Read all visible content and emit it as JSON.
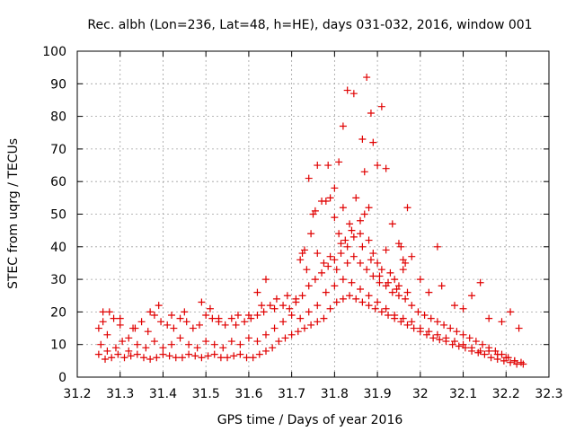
{
  "chart_data": {
    "type": "scatter",
    "title": "Rec. albh (Lon=236, Lat=48, h=HE), days 031-032, 2016, window 001",
    "xlabel": "GPS time / Days of year 2016",
    "ylabel": "STEC from uqrg / TECUs",
    "xlim": [
      31.2,
      32.3
    ],
    "ylim": [
      0,
      100
    ],
    "xticks": [
      31.2,
      31.3,
      31.4,
      31.5,
      31.6,
      31.7,
      31.8,
      31.9,
      32,
      32.1,
      32.2,
      32.3
    ],
    "xtick_labels": [
      "31.2",
      "31.3",
      "31.4",
      "31.5",
      "31.6",
      "31.7",
      "31.8",
      "31.9",
      "32",
      "32.1",
      "32.2",
      "32.3"
    ],
    "yticks": [
      0,
      10,
      20,
      30,
      40,
      50,
      60,
      70,
      80,
      90,
      100
    ],
    "ytick_labels": [
      "0",
      "10",
      "20",
      "30",
      "40",
      "50",
      "60",
      "70",
      "80",
      "90",
      "100"
    ],
    "grid": true,
    "marker": "+",
    "color": "#e00000",
    "series": [
      {
        "name": "",
        "points": [
          [
            31.25,
            7
          ],
          [
            31.265,
            5.5
          ],
          [
            31.28,
            6
          ],
          [
            31.295,
            7
          ],
          [
            31.31,
            6
          ],
          [
            31.325,
            6.5
          ],
          [
            31.34,
            7
          ],
          [
            31.355,
            6
          ],
          [
            31.37,
            5.5
          ],
          [
            31.385,
            6
          ],
          [
            31.4,
            7
          ],
          [
            31.415,
            6.5
          ],
          [
            31.43,
            6
          ],
          [
            31.445,
            6
          ],
          [
            31.46,
            7
          ],
          [
            31.475,
            6.5
          ],
          [
            31.49,
            6
          ],
          [
            31.505,
            6.5
          ],
          [
            31.52,
            7
          ],
          [
            31.535,
            6
          ],
          [
            31.55,
            6
          ],
          [
            31.565,
            6.5
          ],
          [
            31.58,
            7
          ],
          [
            31.595,
            6
          ],
          [
            31.61,
            6
          ],
          [
            31.625,
            7
          ],
          [
            31.64,
            8
          ],
          [
            31.655,
            9
          ],
          [
            31.67,
            11
          ],
          [
            31.685,
            12
          ],
          [
            31.7,
            13
          ],
          [
            31.715,
            14
          ],
          [
            31.73,
            15
          ],
          [
            31.745,
            16
          ],
          [
            31.76,
            17
          ],
          [
            31.775,
            18
          ],
          [
            31.79,
            21
          ],
          [
            31.805,
            23
          ],
          [
            31.82,
            24
          ],
          [
            31.835,
            25
          ],
          [
            31.85,
            24
          ],
          [
            31.865,
            23
          ],
          [
            31.88,
            22
          ],
          [
            31.895,
            21
          ],
          [
            31.91,
            20
          ],
          [
            31.925,
            19
          ],
          [
            31.94,
            18
          ],
          [
            31.955,
            17
          ],
          [
            31.97,
            16
          ],
          [
            31.985,
            15
          ],
          [
            32.0,
            14
          ],
          [
            32.015,
            13
          ],
          [
            32.03,
            12
          ],
          [
            32.045,
            11.5
          ],
          [
            32.06,
            11
          ],
          [
            32.075,
            10
          ],
          [
            32.09,
            9.5
          ],
          [
            32.105,
            9
          ],
          [
            32.12,
            8
          ],
          [
            32.135,
            7.5
          ],
          [
            32.15,
            7
          ],
          [
            32.165,
            6
          ],
          [
            32.18,
            5.5
          ],
          [
            32.195,
            5
          ],
          [
            32.21,
            4.5
          ],
          [
            32.225,
            4
          ],
          [
            32.24,
            4
          ],
          [
            31.25,
            15
          ],
          [
            31.26,
            17
          ],
          [
            31.27,
            13
          ],
          [
            31.285,
            18
          ],
          [
            31.3,
            16
          ],
          [
            31.32,
            12
          ],
          [
            31.335,
            15
          ],
          [
            31.35,
            17
          ],
          [
            31.365,
            14
          ],
          [
            31.38,
            19
          ],
          [
            31.395,
            17
          ],
          [
            31.41,
            16
          ],
          [
            31.425,
            15
          ],
          [
            31.44,
            18
          ],
          [
            31.455,
            17
          ],
          [
            31.47,
            15
          ],
          [
            31.485,
            16
          ],
          [
            31.5,
            19
          ],
          [
            31.515,
            18
          ],
          [
            31.53,
            17
          ],
          [
            31.545,
            16
          ],
          [
            31.56,
            18
          ],
          [
            31.575,
            19
          ],
          [
            31.59,
            17
          ],
          [
            31.605,
            18
          ],
          [
            31.62,
            19
          ],
          [
            31.635,
            20
          ],
          [
            31.65,
            22
          ],
          [
            31.665,
            24
          ],
          [
            31.68,
            22
          ],
          [
            31.695,
            21
          ],
          [
            31.71,
            23
          ],
          [
            31.725,
            25
          ],
          [
            31.74,
            28
          ],
          [
            31.755,
            30
          ],
          [
            31.77,
            32
          ],
          [
            31.785,
            34
          ],
          [
            31.8,
            36
          ],
          [
            31.815,
            38
          ],
          [
            31.83,
            40
          ],
          [
            31.845,
            37
          ],
          [
            31.86,
            35
          ],
          [
            31.875,
            33
          ],
          [
            31.89,
            31
          ],
          [
            31.905,
            29
          ],
          [
            31.92,
            28
          ],
          [
            31.935,
            26
          ],
          [
            31.95,
            25
          ],
          [
            31.965,
            24
          ],
          [
            31.98,
            22
          ],
          [
            31.995,
            20
          ],
          [
            32.01,
            19
          ],
          [
            32.025,
            18
          ],
          [
            32.04,
            17
          ],
          [
            32.055,
            16
          ],
          [
            32.07,
            15
          ],
          [
            32.085,
            14
          ],
          [
            32.1,
            13
          ],
          [
            32.115,
            12
          ],
          [
            32.13,
            11
          ],
          [
            32.145,
            10
          ],
          [
            32.16,
            9
          ],
          [
            32.175,
            8
          ],
          [
            32.19,
            7
          ],
          [
            32.205,
            6
          ],
          [
            32.22,
            5
          ],
          [
            32.235,
            4.5
          ],
          [
            31.255,
            10
          ],
          [
            31.27,
            8
          ],
          [
            31.29,
            9
          ],
          [
            31.305,
            11
          ],
          [
            31.32,
            8
          ],
          [
            31.34,
            10
          ],
          [
            31.36,
            9
          ],
          [
            31.38,
            11
          ],
          [
            31.4,
            9
          ],
          [
            31.42,
            10
          ],
          [
            31.44,
            12
          ],
          [
            31.46,
            10
          ],
          [
            31.48,
            9
          ],
          [
            31.5,
            11
          ],
          [
            31.52,
            10
          ],
          [
            31.54,
            9
          ],
          [
            31.56,
            11
          ],
          [
            31.58,
            10
          ],
          [
            31.6,
            12
          ],
          [
            31.62,
            11
          ],
          [
            31.64,
            13
          ],
          [
            31.66,
            15
          ],
          [
            31.68,
            17
          ],
          [
            31.7,
            19
          ],
          [
            31.72,
            18
          ],
          [
            31.74,
            20
          ],
          [
            31.76,
            22
          ],
          [
            31.78,
            26
          ],
          [
            31.8,
            28
          ],
          [
            31.82,
            30
          ],
          [
            31.84,
            29
          ],
          [
            31.86,
            27
          ],
          [
            31.88,
            25
          ],
          [
            31.9,
            23
          ],
          [
            31.92,
            21
          ],
          [
            31.94,
            19
          ],
          [
            31.96,
            18
          ],
          [
            31.98,
            17
          ],
          [
            32.0,
            15
          ],
          [
            32.02,
            14
          ],
          [
            32.04,
            13
          ],
          [
            32.06,
            12
          ],
          [
            32.08,
            11
          ],
          [
            32.1,
            10
          ],
          [
            32.12,
            9
          ],
          [
            32.14,
            8
          ],
          [
            32.16,
            8
          ],
          [
            32.18,
            7
          ],
          [
            32.2,
            6
          ],
          [
            32.22,
            5
          ],
          [
            31.26,
            20
          ],
          [
            31.275,
            20
          ],
          [
            31.3,
            18
          ],
          [
            31.33,
            15
          ],
          [
            31.37,
            20
          ],
          [
            31.39,
            22
          ],
          [
            31.42,
            19
          ],
          [
            31.45,
            20
          ],
          [
            31.49,
            23
          ],
          [
            31.51,
            21
          ],
          [
            31.53,
            18
          ],
          [
            31.57,
            16
          ],
          [
            31.6,
            19
          ],
          [
            31.62,
            26
          ],
          [
            31.63,
            22
          ],
          [
            31.64,
            30
          ],
          [
            31.66,
            21
          ],
          [
            31.69,
            25
          ],
          [
            31.71,
            24
          ],
          [
            31.72,
            36
          ],
          [
            31.73,
            39
          ],
          [
            31.745,
            44
          ],
          [
            31.75,
            50
          ],
          [
            31.755,
            51
          ],
          [
            31.77,
            54
          ],
          [
            31.78,
            54
          ],
          [
            31.79,
            55
          ],
          [
            31.8,
            58
          ],
          [
            31.81,
            66
          ],
          [
            31.82,
            77
          ],
          [
            31.825,
            42
          ],
          [
            31.83,
            88
          ],
          [
            31.84,
            45
          ],
          [
            31.845,
            87
          ],
          [
            31.86,
            48
          ],
          [
            31.865,
            73
          ],
          [
            31.87,
            63
          ],
          [
            31.875,
            92
          ],
          [
            31.88,
            52
          ],
          [
            31.885,
            81
          ],
          [
            31.89,
            72
          ],
          [
            31.9,
            65
          ],
          [
            31.91,
            83
          ],
          [
            31.92,
            64
          ],
          [
            31.935,
            47
          ],
          [
            31.95,
            41
          ],
          [
            31.96,
            36
          ],
          [
            31.97,
            52
          ],
          [
            31.98,
            37
          ],
          [
            32.0,
            30
          ],
          [
            32.02,
            26
          ],
          [
            32.04,
            40
          ],
          [
            32.05,
            28
          ],
          [
            32.08,
            22
          ],
          [
            32.1,
            21
          ],
          [
            32.12,
            25
          ],
          [
            32.14,
            29
          ],
          [
            32.16,
            18
          ],
          [
            32.19,
            17
          ],
          [
            32.21,
            20
          ],
          [
            32.23,
            15
          ],
          [
            31.74,
            61
          ],
          [
            31.76,
            65
          ],
          [
            31.785,
            65
          ],
          [
            31.8,
            49
          ],
          [
            31.81,
            44
          ],
          [
            31.82,
            52
          ],
          [
            31.835,
            47
          ],
          [
            31.85,
            55
          ],
          [
            31.86,
            44
          ],
          [
            31.87,
            50
          ],
          [
            31.88,
            42
          ],
          [
            31.89,
            38
          ],
          [
            31.9,
            35
          ],
          [
            31.91,
            33
          ],
          [
            31.92,
            39
          ],
          [
            31.93,
            32
          ],
          [
            31.94,
            30
          ],
          [
            31.95,
            28
          ],
          [
            31.96,
            33
          ],
          [
            31.97,
            26
          ],
          [
            31.725,
            38
          ],
          [
            31.735,
            33
          ],
          [
            31.76,
            38
          ],
          [
            31.775,
            35
          ],
          [
            31.79,
            37
          ],
          [
            31.805,
            33
          ],
          [
            31.815,
            41
          ],
          [
            31.83,
            35
          ],
          [
            31.845,
            43
          ],
          [
            31.865,
            40
          ],
          [
            31.885,
            36
          ],
          [
            31.905,
            31
          ],
          [
            31.925,
            29
          ],
          [
            31.945,
            27
          ],
          [
            31.955,
            40
          ],
          [
            31.965,
            35
          ]
        ]
      }
    ]
  }
}
